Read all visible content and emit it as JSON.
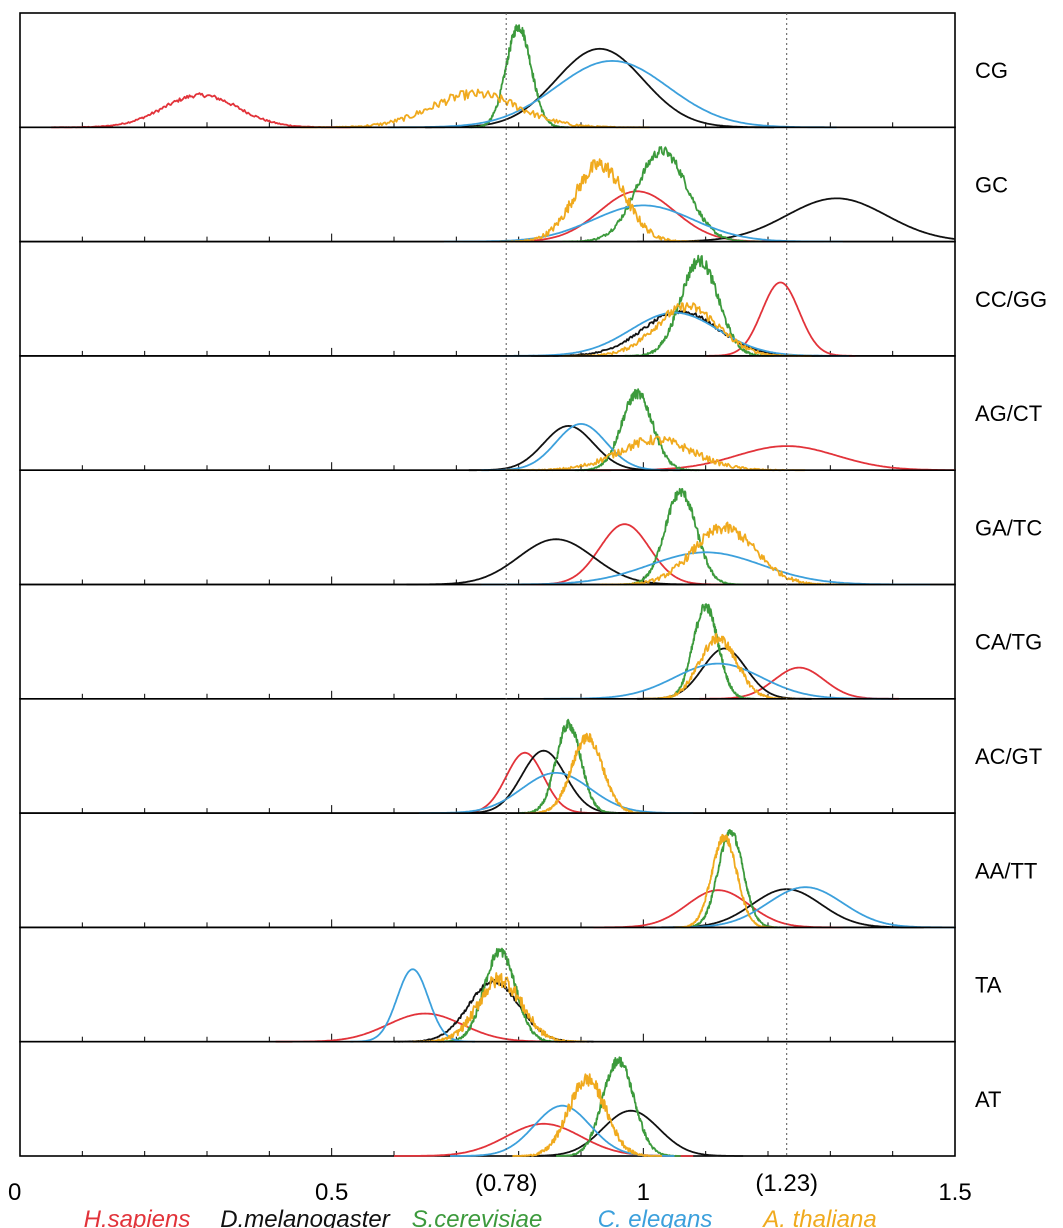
{
  "chart_data": {
    "type": "line",
    "xlim": [
      0,
      1.5
    ],
    "x_ticks": [
      {
        "value": 0,
        "label": "0"
      },
      {
        "value": 0.5,
        "label": "0.5"
      },
      {
        "value": 1,
        "label": "1"
      },
      {
        "value": 1.5,
        "label": "1.5"
      }
    ],
    "reference_lines": [
      {
        "value": 0.78,
        "label": "(0.78)"
      },
      {
        "value": 1.23,
        "label": "(1.23)"
      }
    ],
    "series": [
      {
        "name": "H.sapiens",
        "color": "#e2333a"
      },
      {
        "name": "D.melanogaster",
        "color": "#111111"
      },
      {
        "name": "S.cerevisiae",
        "color": "#3c9a3c"
      },
      {
        "name": "C. elegans",
        "color": "#3ca0dc"
      },
      {
        "name": "A. thaliana",
        "color": "#f0aa1e"
      }
    ],
    "panels": [
      {
        "label": "CG",
        "peaks": [
          {
            "series": 0,
            "mean": 0.29,
            "sd": 0.06,
            "height": 0.32,
            "noise": 0.02
          },
          {
            "series": 1,
            "mean": 0.93,
            "sd": 0.07,
            "height": 0.78
          },
          {
            "series": 2,
            "mean": 0.8,
            "sd": 0.02,
            "height": 1.0,
            "noise": 0.05
          },
          {
            "series": 3,
            "mean": 0.95,
            "sd": 0.09,
            "height": 0.66
          },
          {
            "series": 4,
            "mean": 0.73,
            "sd": 0.07,
            "height": 0.33,
            "noise": 0.05
          }
        ]
      },
      {
        "label": "GC",
        "peaks": [
          {
            "series": 0,
            "mean": 0.99,
            "sd": 0.06,
            "height": 0.5
          },
          {
            "series": 1,
            "mean": 1.31,
            "sd": 0.08,
            "height": 0.43
          },
          {
            "series": 2,
            "mean": 1.03,
            "sd": 0.04,
            "height": 0.9,
            "noise": 0.05
          },
          {
            "series": 3,
            "mean": 1.0,
            "sd": 0.08,
            "height": 0.36
          },
          {
            "series": 4,
            "mean": 0.93,
            "sd": 0.04,
            "height": 0.76,
            "noise": 0.08
          }
        ]
      },
      {
        "label": "CC/GG",
        "peaks": [
          {
            "series": 0,
            "mean": 1.22,
            "sd": 0.03,
            "height": 0.73
          },
          {
            "series": 1,
            "mean": 1.06,
            "sd": 0.06,
            "height": 0.44,
            "noise": 0.02
          },
          {
            "series": 2,
            "mean": 1.09,
            "sd": 0.03,
            "height": 0.95,
            "noise": 0.06
          },
          {
            "series": 3,
            "mean": 1.05,
            "sd": 0.07,
            "height": 0.43
          },
          {
            "series": 4,
            "mean": 1.07,
            "sd": 0.05,
            "height": 0.49,
            "noise": 0.05
          }
        ]
      },
      {
        "label": "AG/CT",
        "peaks": [
          {
            "series": 0,
            "mean": 1.23,
            "sd": 0.08,
            "height": 0.24
          },
          {
            "series": 1,
            "mean": 0.88,
            "sd": 0.04,
            "height": 0.44
          },
          {
            "series": 2,
            "mean": 0.99,
            "sd": 0.025,
            "height": 0.76,
            "noise": 0.05
          },
          {
            "series": 3,
            "mean": 0.9,
            "sd": 0.04,
            "height": 0.46
          },
          {
            "series": 4,
            "mean": 1.02,
            "sd": 0.06,
            "height": 0.3,
            "noise": 0.05
          }
        ]
      },
      {
        "label": "GA/TC",
        "peaks": [
          {
            "series": 0,
            "mean": 0.97,
            "sd": 0.04,
            "height": 0.6
          },
          {
            "series": 1,
            "mean": 0.86,
            "sd": 0.06,
            "height": 0.45
          },
          {
            "series": 2,
            "mean": 1.06,
            "sd": 0.025,
            "height": 0.92,
            "noise": 0.05
          },
          {
            "series": 3,
            "mean": 1.1,
            "sd": 0.09,
            "height": 0.32
          },
          {
            "series": 4,
            "mean": 1.13,
            "sd": 0.05,
            "height": 0.56,
            "noise": 0.06
          }
        ]
      },
      {
        "label": "CA/TG",
        "peaks": [
          {
            "series": 0,
            "mean": 1.25,
            "sd": 0.04,
            "height": 0.31
          },
          {
            "series": 1,
            "mean": 1.13,
            "sd": 0.035,
            "height": 0.5
          },
          {
            "series": 2,
            "mean": 1.1,
            "sd": 0.02,
            "height": 0.92,
            "noise": 0.05
          },
          {
            "series": 3,
            "mean": 1.12,
            "sd": 0.07,
            "height": 0.35
          },
          {
            "series": 4,
            "mean": 1.12,
            "sd": 0.03,
            "height": 0.6,
            "noise": 0.05
          }
        ]
      },
      {
        "label": "AC/GT",
        "peaks": [
          {
            "series": 0,
            "mean": 0.81,
            "sd": 0.03,
            "height": 0.6
          },
          {
            "series": 1,
            "mean": 0.84,
            "sd": 0.035,
            "height": 0.62
          },
          {
            "series": 2,
            "mean": 0.88,
            "sd": 0.02,
            "height": 0.88,
            "noise": 0.05
          },
          {
            "series": 3,
            "mean": 0.86,
            "sd": 0.055,
            "height": 0.4
          },
          {
            "series": 4,
            "mean": 0.91,
            "sd": 0.025,
            "height": 0.75,
            "noise": 0.05
          }
        ]
      },
      {
        "label": "AA/TT",
        "peaks": [
          {
            "series": 0,
            "mean": 1.12,
            "sd": 0.05,
            "height": 0.37
          },
          {
            "series": 1,
            "mean": 1.23,
            "sd": 0.055,
            "height": 0.38
          },
          {
            "series": 2,
            "mean": 1.14,
            "sd": 0.02,
            "height": 0.95,
            "noise": 0.04
          },
          {
            "series": 3,
            "mean": 1.26,
            "sd": 0.06,
            "height": 0.4
          },
          {
            "series": 4,
            "mean": 1.13,
            "sd": 0.02,
            "height": 0.9,
            "noise": 0.04
          }
        ]
      },
      {
        "label": "TA",
        "peaks": [
          {
            "series": 0,
            "mean": 0.65,
            "sd": 0.06,
            "height": 0.28
          },
          {
            "series": 1,
            "mean": 0.76,
            "sd": 0.04,
            "height": 0.6,
            "noise": 0.02
          },
          {
            "series": 2,
            "mean": 0.77,
            "sd": 0.025,
            "height": 0.9,
            "noise": 0.05
          },
          {
            "series": 3,
            "mean": 0.63,
            "sd": 0.025,
            "height": 0.72
          },
          {
            "series": 4,
            "mean": 0.77,
            "sd": 0.035,
            "height": 0.62,
            "noise": 0.08
          }
        ]
      },
      {
        "label": "AT",
        "peaks": [
          {
            "series": 0,
            "mean": 0.84,
            "sd": 0.06,
            "height": 0.32
          },
          {
            "series": 1,
            "mean": 0.98,
            "sd": 0.045,
            "height": 0.45
          },
          {
            "series": 2,
            "mean": 0.96,
            "sd": 0.025,
            "height": 0.95,
            "noise": 0.05
          },
          {
            "series": 3,
            "mean": 0.87,
            "sd": 0.045,
            "height": 0.5
          },
          {
            "series": 4,
            "mean": 0.91,
            "sd": 0.03,
            "height": 0.76,
            "noise": 0.07
          }
        ]
      }
    ]
  }
}
